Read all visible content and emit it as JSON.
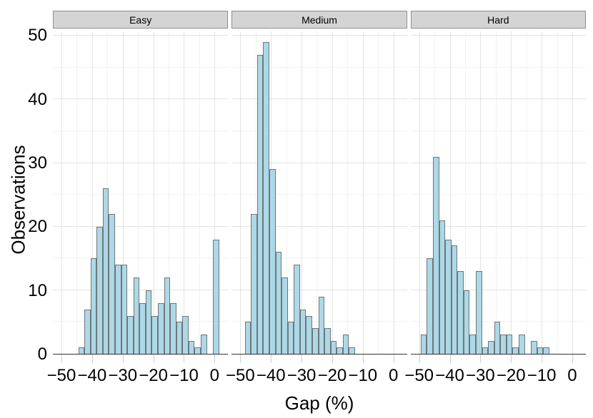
{
  "chart_data": {
    "type": "bar",
    "subtype": "faceted-histogram",
    "title": "",
    "xlabel": "Gap (%)",
    "ylabel": "Observations",
    "bin_width": 2,
    "x_tick_values": [
      -50,
      -40,
      -30,
      -20,
      -10,
      0
    ],
    "x_tick_labels": [
      "−50",
      "−40",
      "−30",
      "−20",
      "−10",
      "0"
    ],
    "y_tick_values": [
      0,
      10,
      20,
      30,
      40,
      50
    ],
    "y_tick_labels": [
      "0",
      "10",
      "20",
      "30",
      "40",
      "50"
    ],
    "y_minor_values": [
      5,
      15,
      25,
      35,
      45
    ],
    "x_minor_values": [
      -45,
      -35,
      -25,
      -15,
      -5
    ],
    "ylim": [
      0,
      50.7
    ],
    "grid": "major-and-minor",
    "legend_position": "none",
    "facets": [
      {
        "label": "Easy",
        "bin_start": -44.5,
        "counts": [
          1,
          7,
          15,
          20,
          26,
          22,
          14,
          14,
          6,
          12,
          8,
          10,
          6,
          8,
          12,
          8,
          5,
          6,
          2,
          1,
          3,
          0,
          18
        ]
      },
      {
        "label": "Medium",
        "bin_start": -48.5,
        "counts": [
          5,
          22,
          47,
          49,
          29,
          16,
          12,
          5,
          14,
          7,
          6,
          4,
          9,
          4,
          2,
          1,
          3,
          1
        ]
      },
      {
        "label": "Hard",
        "bin_start": -49.5,
        "counts": [
          3,
          15,
          31,
          21,
          18,
          17,
          13,
          10,
          3,
          13,
          1,
          2,
          5,
          3,
          3,
          1,
          3,
          0,
          2,
          1,
          1
        ]
      }
    ]
  },
  "style": {
    "colors": {
      "bar_fill": "#ADD8E6",
      "bar_stroke": "#6E777B",
      "grid_major": "#E3E3E3",
      "grid_minor": "#F2F2F2",
      "axis_line": "#333333",
      "tick_mark": "#CDCDCD",
      "strip_fill": "#D4D4D4",
      "strip_border": "#8E8E8E",
      "text": "#000000",
      "background": "#FFFFFF"
    }
  }
}
